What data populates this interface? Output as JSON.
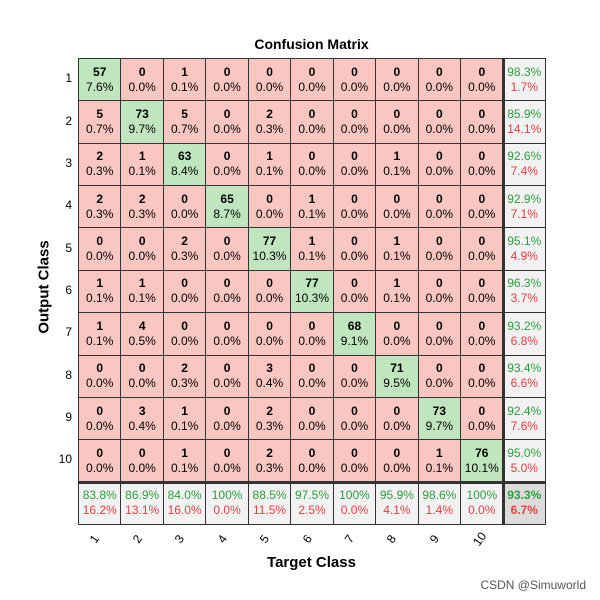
{
  "chart_data": {
    "type": "heatmap",
    "title": "Confusion Matrix",
    "xlabel": "Target Class",
    "ylabel": "Output Class",
    "classes": [
      "1",
      "2",
      "3",
      "4",
      "5",
      "6",
      "7",
      "8",
      "9",
      "10"
    ],
    "matrix": [
      [
        57,
        0,
        1,
        0,
        0,
        0,
        0,
        0,
        0,
        0
      ],
      [
        5,
        73,
        5,
        0,
        2,
        0,
        0,
        0,
        0,
        0
      ],
      [
        2,
        1,
        63,
        0,
        1,
        0,
        0,
        1,
        0,
        0
      ],
      [
        2,
        2,
        0,
        65,
        0,
        1,
        0,
        0,
        0,
        0
      ],
      [
        0,
        0,
        2,
        0,
        77,
        1,
        0,
        1,
        0,
        0
      ],
      [
        1,
        1,
        0,
        0,
        0,
        77,
        0,
        1,
        0,
        0
      ],
      [
        1,
        4,
        0,
        0,
        0,
        0,
        68,
        0,
        0,
        0
      ],
      [
        0,
        0,
        2,
        0,
        3,
        0,
        0,
        71,
        0,
        0
      ],
      [
        0,
        3,
        1,
        0,
        2,
        0,
        0,
        0,
        73,
        0
      ],
      [
        0,
        0,
        1,
        0,
        2,
        0,
        0,
        0,
        1,
        76
      ]
    ],
    "matrix_pct": [
      [
        "7.6%",
        "0.0%",
        "0.1%",
        "0.0%",
        "0.0%",
        "0.0%",
        "0.0%",
        "0.0%",
        "0.0%",
        "0.0%"
      ],
      [
        "0.7%",
        "9.7%",
        "0.7%",
        "0.0%",
        "0.3%",
        "0.0%",
        "0.0%",
        "0.0%",
        "0.0%",
        "0.0%"
      ],
      [
        "0.3%",
        "0.1%",
        "8.4%",
        "0.0%",
        "0.1%",
        "0.0%",
        "0.0%",
        "0.1%",
        "0.0%",
        "0.0%"
      ],
      [
        "0.3%",
        "0.3%",
        "0.0%",
        "8.7%",
        "0.0%",
        "0.1%",
        "0.0%",
        "0.0%",
        "0.0%",
        "0.0%"
      ],
      [
        "0.0%",
        "0.0%",
        "0.3%",
        "0.0%",
        "10.3%",
        "0.1%",
        "0.0%",
        "0.1%",
        "0.0%",
        "0.0%"
      ],
      [
        "0.1%",
        "0.1%",
        "0.0%",
        "0.0%",
        "0.0%",
        "10.3%",
        "0.0%",
        "0.1%",
        "0.0%",
        "0.0%"
      ],
      [
        "0.1%",
        "0.5%",
        "0.0%",
        "0.0%",
        "0.0%",
        "0.0%",
        "9.1%",
        "0.0%",
        "0.0%",
        "0.0%"
      ],
      [
        "0.0%",
        "0.0%",
        "0.3%",
        "0.0%",
        "0.4%",
        "0.0%",
        "0.0%",
        "9.5%",
        "0.0%",
        "0.0%"
      ],
      [
        "0.0%",
        "0.4%",
        "0.1%",
        "0.0%",
        "0.3%",
        "0.0%",
        "0.0%",
        "0.0%",
        "9.7%",
        "0.0%"
      ],
      [
        "0.0%",
        "0.0%",
        "0.1%",
        "0.0%",
        "0.3%",
        "0.0%",
        "0.0%",
        "0.0%",
        "0.1%",
        "10.1%"
      ]
    ],
    "row_summary": [
      [
        "98.3%",
        "1.7%"
      ],
      [
        "85.9%",
        "14.1%"
      ],
      [
        "92.6%",
        "7.4%"
      ],
      [
        "92.9%",
        "7.1%"
      ],
      [
        "95.1%",
        "4.9%"
      ],
      [
        "96.3%",
        "3.7%"
      ],
      [
        "93.2%",
        "6.8%"
      ],
      [
        "93.4%",
        "6.6%"
      ],
      [
        "92.4%",
        "7.6%"
      ],
      [
        "95.0%",
        "5.0%"
      ]
    ],
    "col_summary": [
      [
        "83.8%",
        "16.2%"
      ],
      [
        "86.9%",
        "13.1%"
      ],
      [
        "84.0%",
        "16.0%"
      ],
      [
        "100%",
        "0.0%"
      ],
      [
        "88.5%",
        "11.5%"
      ],
      [
        "97.5%",
        "2.5%"
      ],
      [
        "100%",
        "0.0%"
      ],
      [
        "95.9%",
        "4.1%"
      ],
      [
        "98.6%",
        "1.4%"
      ],
      [
        "100%",
        "0.0%"
      ]
    ],
    "overall": [
      "93.3%",
      "6.7%"
    ]
  },
  "colors": {
    "correct": "#bfe6bf",
    "incorrect": "#f9c6c2",
    "summary": "#f2f2f2",
    "total": "#dcdcdc",
    "good_text": "#2e9e3e",
    "bad_text": "#e34040"
  },
  "watermark": "CSDN @Simuworld"
}
